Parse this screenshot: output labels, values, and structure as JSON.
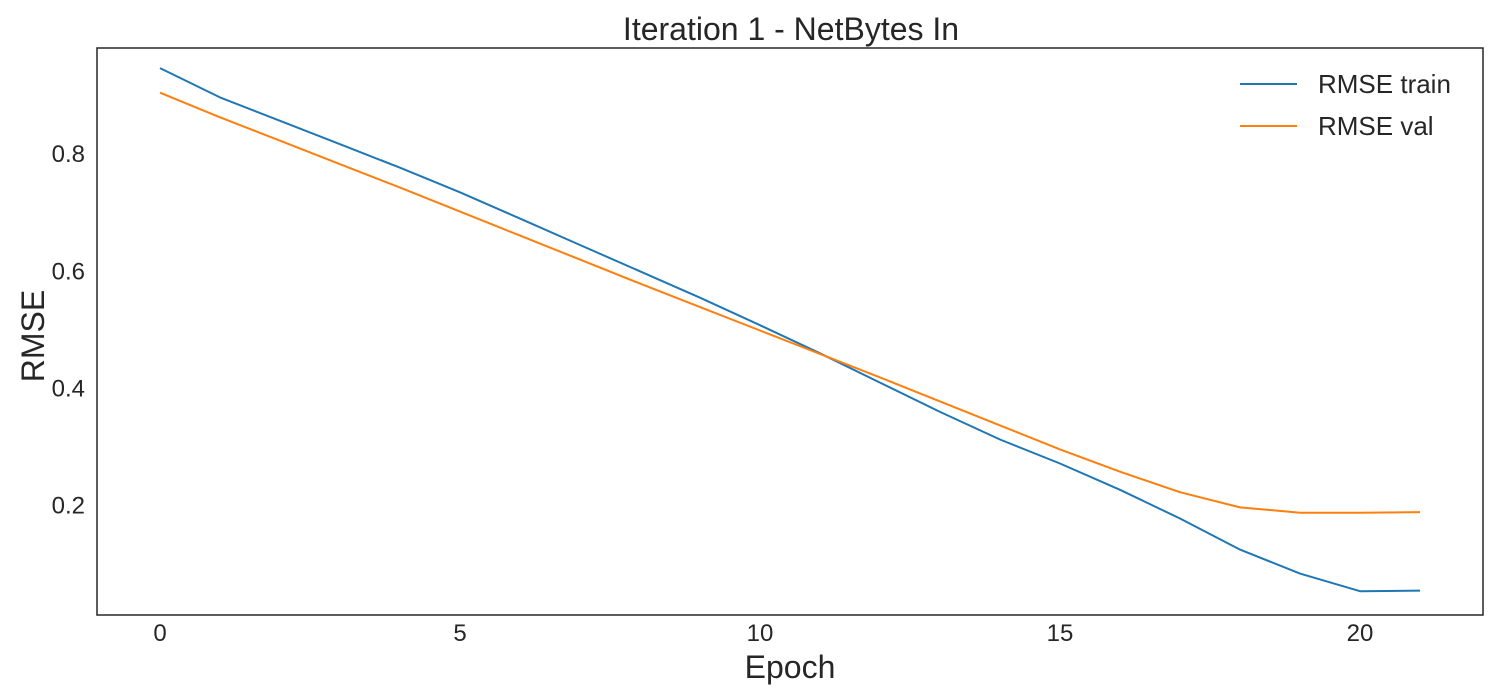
{
  "chart_data": {
    "type": "line",
    "title": "Iteration 1 - NetBytes In",
    "xlabel": "Epoch",
    "ylabel": "RMSE",
    "xlim": [
      -1.05,
      22.05
    ],
    "ylim": [
      0.0133,
      0.9813
    ],
    "xticks": [
      0,
      5,
      10,
      15,
      20
    ],
    "xtick_labels": [
      "0",
      "5",
      "10",
      "15",
      "20"
    ],
    "yticks": [
      0.2,
      0.4,
      0.6,
      0.8
    ],
    "ytick_labels": [
      "0.2",
      "0.4",
      "0.6",
      "0.8"
    ],
    "grid": false,
    "legend_position": "top-right",
    "x": [
      0,
      1,
      2,
      3,
      4,
      5,
      6,
      7,
      8,
      9,
      10,
      11,
      12,
      13,
      14,
      15,
      16,
      17,
      18,
      19,
      20,
      21
    ],
    "series": [
      {
        "name": "RMSE train",
        "color": "#1f77b4",
        "values": [
          0.947,
          0.897,
          0.857,
          0.817,
          0.777,
          0.735,
          0.69,
          0.645,
          0.6,
          0.555,
          0.508,
          0.46,
          0.41,
          0.36,
          0.313,
          0.272,
          0.227,
          0.178,
          0.125,
          0.084,
          0.054,
          0.055
        ]
      },
      {
        "name": "RMSE val",
        "color": "#ff7f0e",
        "values": [
          0.905,
          0.863,
          0.823,
          0.783,
          0.743,
          0.702,
          0.661,
          0.62,
          0.579,
          0.539,
          0.499,
          0.459,
          0.419,
          0.378,
          0.337,
          0.296,
          0.258,
          0.223,
          0.197,
          0.188,
          0.188,
          0.189
        ]
      }
    ]
  }
}
